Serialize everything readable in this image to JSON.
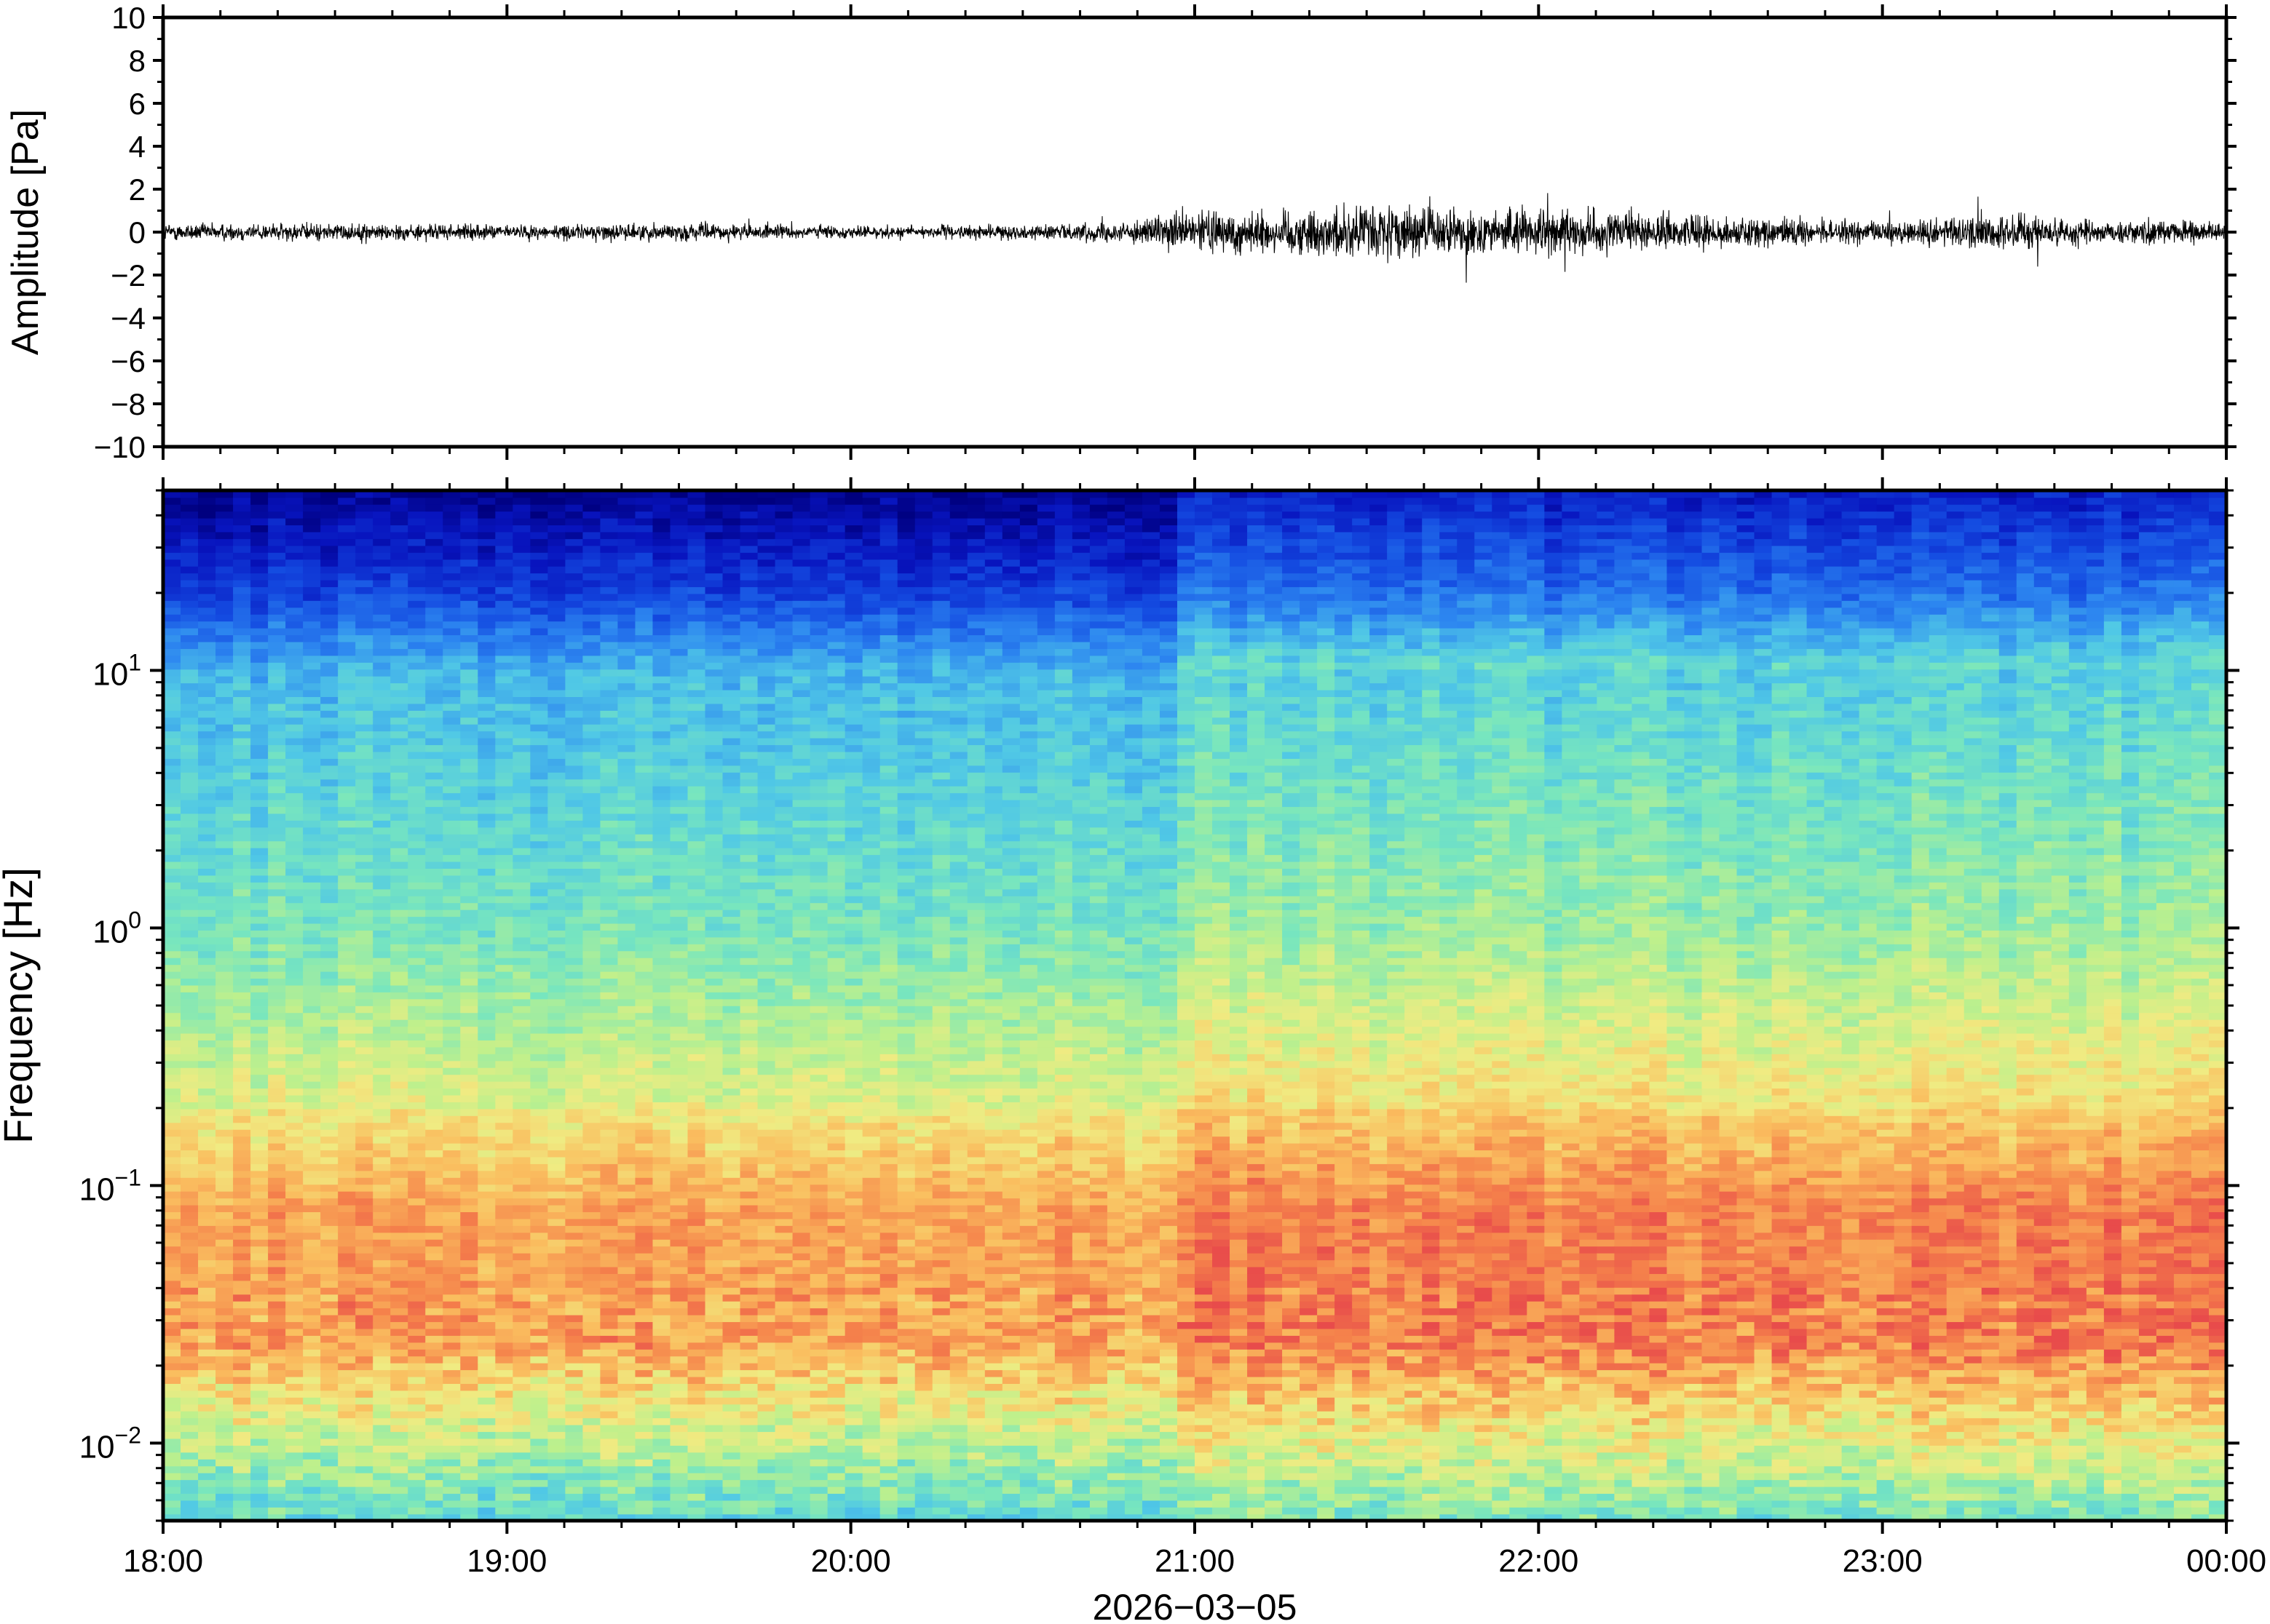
{
  "chart_data": [
    {
      "type": "line",
      "panel": "waveform",
      "ylabel": "Amplitude [Pa]",
      "ylim": [
        -10,
        10
      ],
      "yticks": [
        10,
        8,
        6,
        4,
        2,
        0,
        -2,
        -4,
        -6,
        -8,
        -10
      ],
      "ytick_labels": [
        "10",
        "8",
        "6",
        "4",
        "2",
        "0",
        "−2",
        "−4",
        "−6",
        "−8",
        "−10"
      ],
      "x_range": [
        "18:00",
        "00:00"
      ],
      "grid": false,
      "envelope": {
        "times": [
          "18:00",
          "18:30",
          "19:00",
          "19:30",
          "20:00",
          "20:30",
          "20:50",
          "21:00",
          "21:20",
          "21:30",
          "21:45",
          "22:00",
          "22:30",
          "23:00",
          "23:20",
          "23:40",
          "00:00"
        ],
        "amplitude": [
          0.5,
          0.5,
          0.4,
          0.5,
          0.35,
          0.4,
          0.6,
          1.2,
          1.3,
          1.6,
          1.3,
          1.3,
          0.9,
          0.6,
          1.1,
          0.7,
          0.6
        ]
      }
    },
    {
      "type": "heatmap",
      "panel": "spectrogram",
      "ylabel": "Frequency [Hz]",
      "yscale": "log",
      "ylim": [
        0.005,
        50
      ],
      "ytick_values": [
        0.01,
        0.1,
        1,
        10
      ],
      "ytick_labels": [
        {
          "base": "10",
          "exp": "−2"
        },
        {
          "base": "10",
          "exp": "−1"
        },
        {
          "base": "10",
          "exp": "0"
        },
        {
          "base": "10",
          "exp": "1"
        }
      ],
      "xlabel": "2026−03−05",
      "xticks": [
        "18:00",
        "19:00",
        "20:00",
        "21:00",
        "22:00",
        "23:00",
        "00:00"
      ],
      "colormap": "jet (dark blue = low power, red = high power)",
      "colors": [
        "#00007f",
        "#0a2ad0",
        "#2b78f0",
        "#4cc7ef",
        "#86e8be",
        "#c8f08a",
        "#f6e37a",
        "#fbb458",
        "#f47a45",
        "#e84848"
      ],
      "features": {
        "quiet_period": [
          "18:00",
          "20:57"
        ],
        "active_period": [
          "20:57",
          "00:00"
        ],
        "peak_power_band_hz": [
          0.03,
          0.15
        ]
      }
    }
  ]
}
